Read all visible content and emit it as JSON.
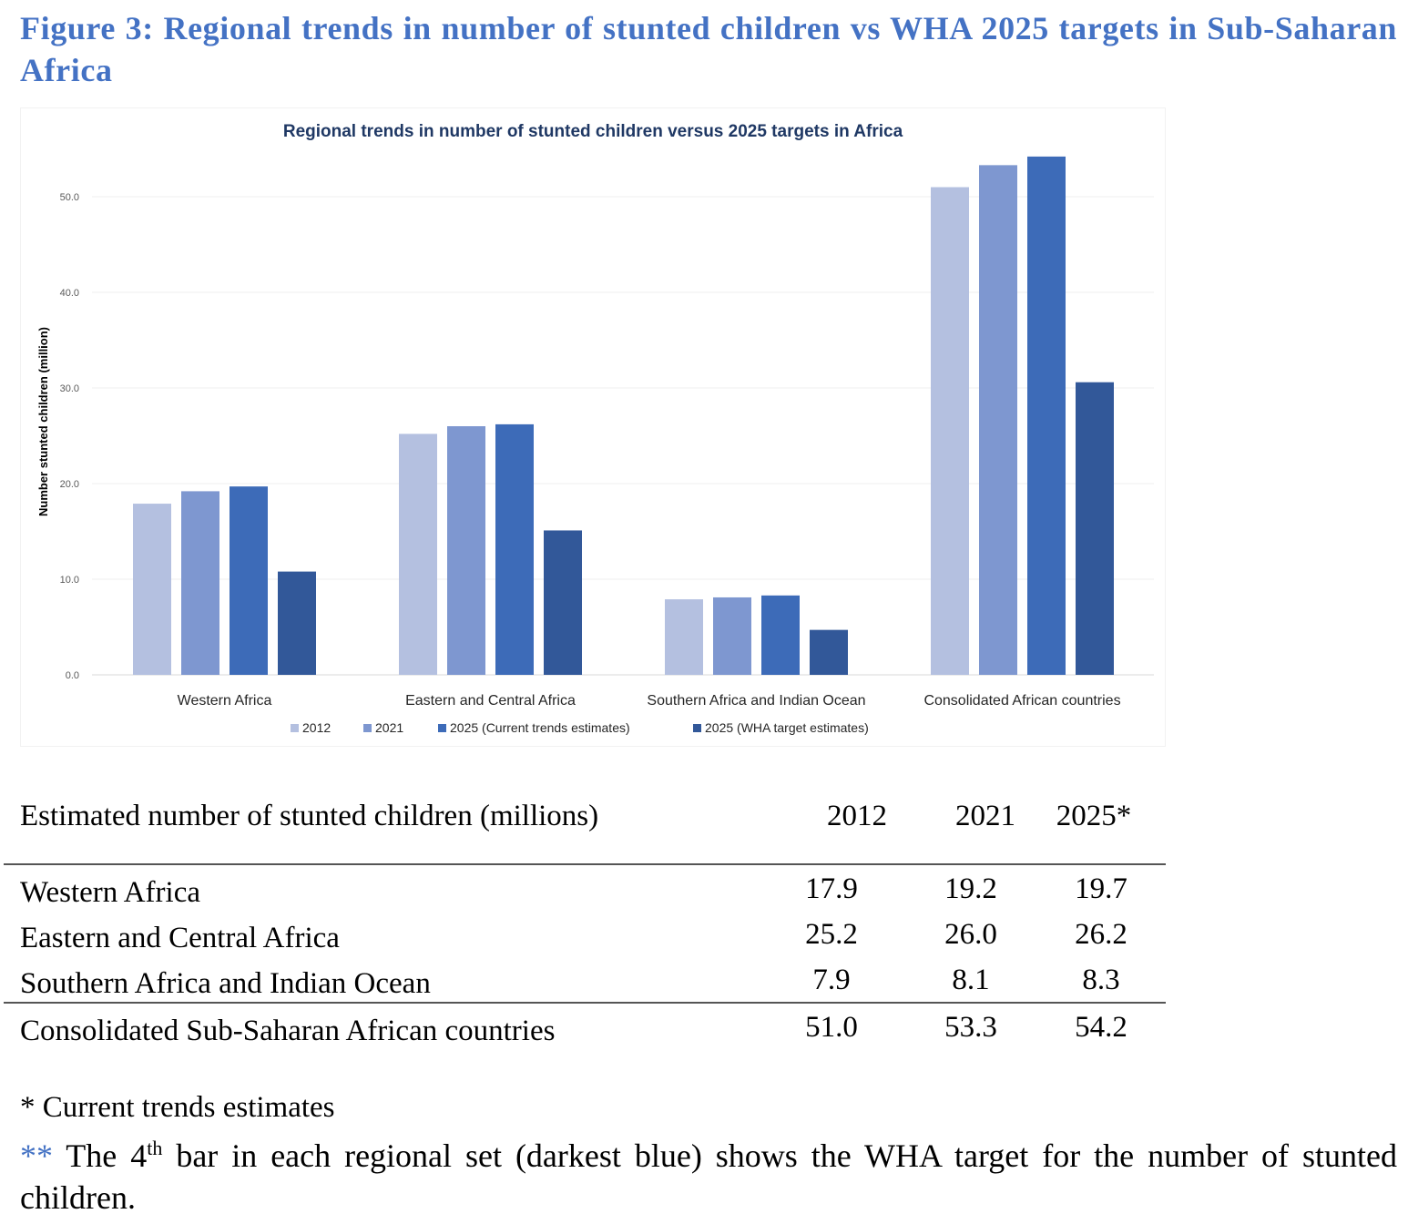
{
  "figure_title": "Figure 3: Regional trends in number of stunted children vs WHA 2025 targets in Sub-Saharan Africa",
  "chart_data": {
    "type": "bar",
    "title": "Regional trends in number of stunted children versus 2025 targets in Africa",
    "xlabel": "",
    "ylabel": "Number stunted children (million)",
    "ylim": [
      0,
      55
    ],
    "yticks": [
      "0.0",
      "10.0",
      "20.0",
      "30.0",
      "40.0",
      "50.0"
    ],
    "grid": true,
    "legend_position": "bottom",
    "categories": [
      "Western Africa",
      "Eastern and Central Africa",
      "Southern Africa and Indian Ocean",
      "Consolidated African countries"
    ],
    "series": [
      {
        "name": "2012",
        "color": "#b4c0e0",
        "values": [
          17.9,
          25.2,
          7.9,
          51.0
        ]
      },
      {
        "name": "2021",
        "color": "#7e97d0",
        "values": [
          19.2,
          26.0,
          8.1,
          53.3
        ]
      },
      {
        "name": "2025 (Current trends estimates)",
        "color": "#3d6bb8",
        "values": [
          19.7,
          26.2,
          8.3,
          54.2
        ]
      },
      {
        "name": "2025 (WHA target estimates)",
        "color": "#325899",
        "values": [
          10.8,
          15.1,
          4.7,
          30.6
        ]
      }
    ]
  },
  "table": {
    "header_label": "Estimated number of stunted children (millions)",
    "columns": [
      "2012",
      "2021",
      "2025*"
    ],
    "rows": [
      {
        "label": "Western Africa",
        "values": [
          "17.9",
          "19.2",
          "19.7"
        ]
      },
      {
        "label": "Eastern and Central Africa",
        "values": [
          "25.2",
          "26.0",
          "26.2"
        ]
      },
      {
        "label": "Southern Africa and Indian Ocean",
        "values": [
          "7.9",
          "8.1",
          "8.3"
        ]
      }
    ],
    "total_row": {
      "label": "Consolidated Sub-Saharan African countries",
      "values": [
        "51.0",
        "53.3",
        "54.2"
      ]
    }
  },
  "notes": {
    "note1": "* Current trends estimates",
    "note2_marker": "**",
    "note2_pre": " The 4",
    "note2_sup": "th",
    "note2_post": " bar in each regional set (darkest blue) shows the WHA target for the number of stunted children."
  }
}
